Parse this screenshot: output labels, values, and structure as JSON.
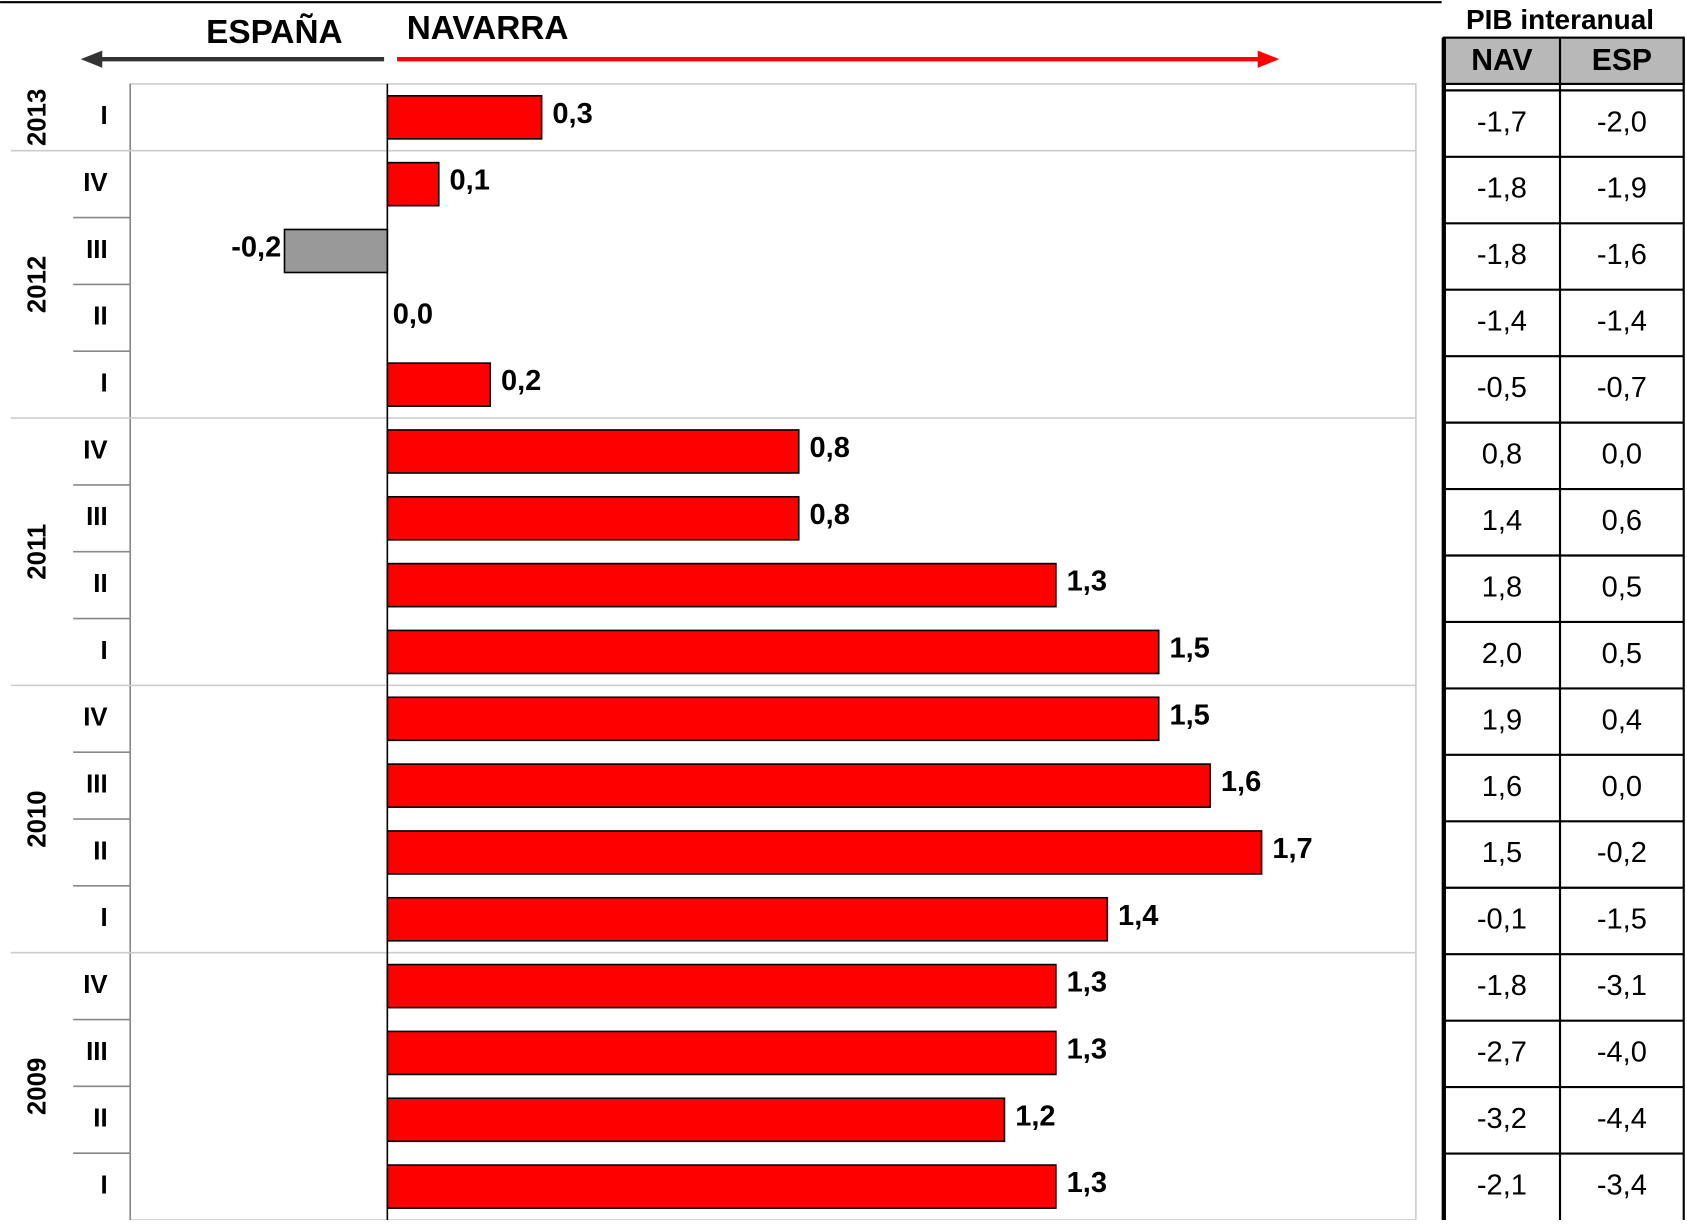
{
  "chart_data": {
    "type": "bar",
    "orientation": "horizontal",
    "left_label": "ESPAÑA",
    "right_label": "NAVARRA",
    "color": "#ff0000",
    "negative_color": "#999999",
    "left_arrow_color": "#333333",
    "xlim": [
      -0.5,
      2.0
    ],
    "groups": [
      {
        "name": "2013",
        "categories": [
          "I"
        ],
        "values": [
          0.3
        ],
        "value_labels": [
          "0,3"
        ]
      },
      {
        "name": "2012",
        "categories": [
          "IV",
          "III",
          "II",
          "I"
        ],
        "values": [
          0.1,
          -0.2,
          0.0,
          0.2
        ],
        "value_labels": [
          "0,1",
          "-0,2",
          "0,0",
          "0,2"
        ]
      },
      {
        "name": "2011",
        "categories": [
          "IV",
          "III",
          "II",
          "I"
        ],
        "values": [
          0.8,
          0.8,
          1.3,
          1.5
        ],
        "value_labels": [
          "0,8",
          "0,8",
          "1,3",
          "1,5"
        ]
      },
      {
        "name": "2010",
        "categories": [
          "IV",
          "III",
          "II",
          "I"
        ],
        "values": [
          1.5,
          1.6,
          1.7,
          1.4
        ],
        "value_labels": [
          "1,5",
          "1,6",
          "1,7",
          "1,4"
        ]
      },
      {
        "name": "2009",
        "categories": [
          "IV",
          "III",
          "II",
          "I"
        ],
        "values": [
          1.3,
          1.3,
          1.2,
          1.3
        ],
        "value_labels": [
          "1,3",
          "1,3",
          "1,2",
          "1,3"
        ]
      }
    ]
  },
  "table": {
    "title": "PIB interanual",
    "header": [
      "NAV",
      "ESP"
    ],
    "rows": [
      [
        "-1,7",
        "-2,0"
      ],
      [
        "-1,8",
        "-1,9"
      ],
      [
        "-1,8",
        "-1,6"
      ],
      [
        "-1,4",
        "-1,4"
      ],
      [
        "-0,5",
        "-0,7"
      ],
      [
        "0,8",
        "0,0"
      ],
      [
        "1,4",
        "0,6"
      ],
      [
        "1,8",
        "0,5"
      ],
      [
        "2,0",
        "0,5"
      ],
      [
        "1,9",
        "0,4"
      ],
      [
        "1,6",
        "0,0"
      ],
      [
        "1,5",
        "-0,2"
      ],
      [
        "-0,1",
        "-1,5"
      ],
      [
        "-1,8",
        "-3,1"
      ],
      [
        "-2,7",
        "-4,0"
      ],
      [
        "-3,2",
        "-4,4"
      ],
      [
        "-2,1",
        "-3,4"
      ]
    ]
  }
}
